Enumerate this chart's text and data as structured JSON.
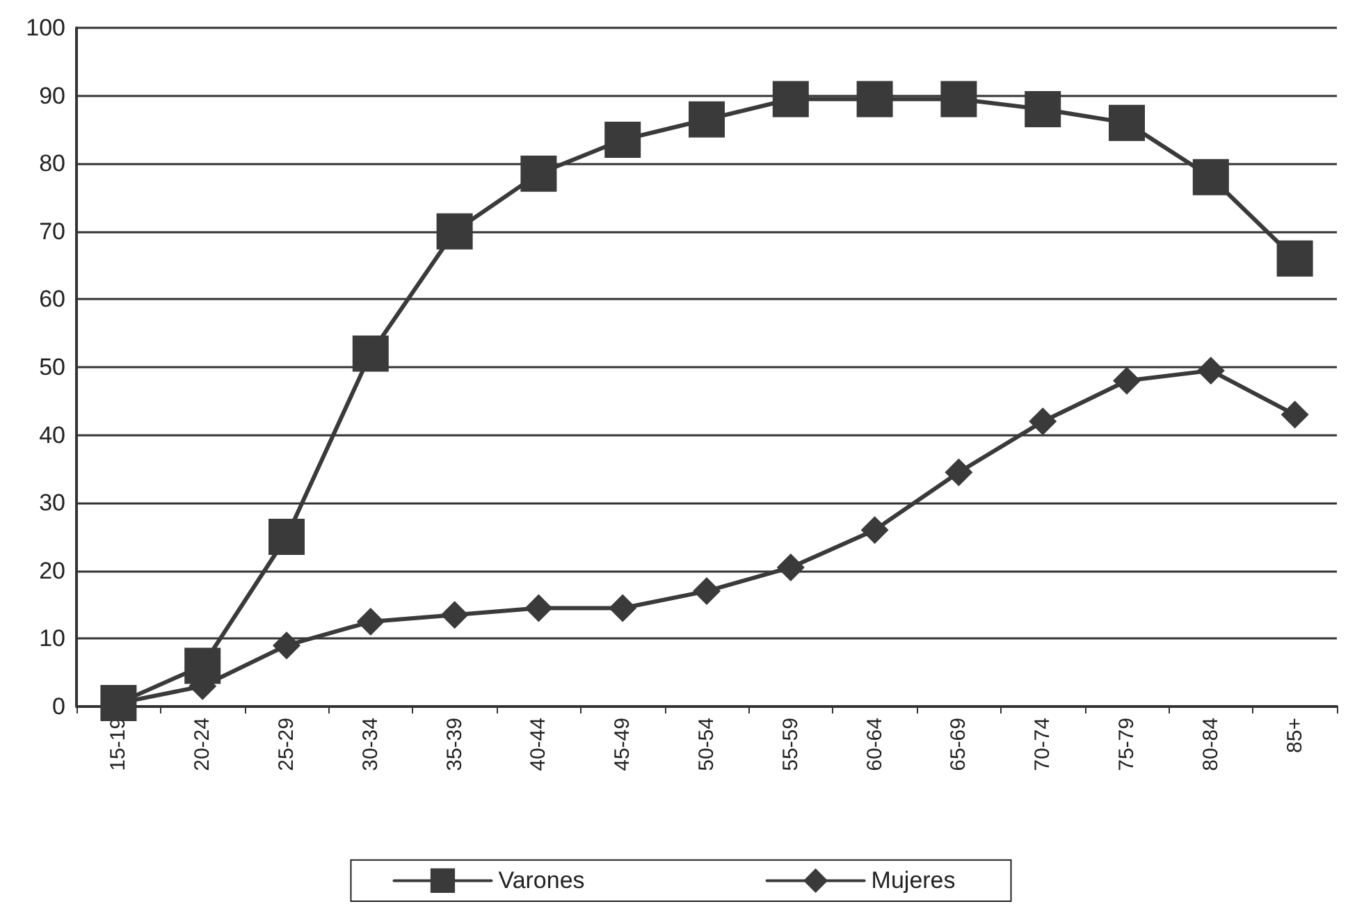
{
  "chart_data": {
    "type": "line",
    "categories": [
      "15-19",
      "20-24",
      "25-29",
      "30-34",
      "35-39",
      "40-44",
      "45-49",
      "50-54",
      "55-59",
      "60-64",
      "65-69",
      "70-74",
      "75-79",
      "80-84",
      "85+"
    ],
    "series": [
      {
        "name": "Varones",
        "color": "#3a3a3a",
        "marker": "square",
        "values": [
          0.5,
          6,
          25,
          52,
          70,
          78.5,
          83.5,
          86.5,
          89.5,
          89.5,
          89.5,
          88,
          86,
          78,
          66
        ]
      },
      {
        "name": "Mujeres",
        "color": "#3a3a3a",
        "marker": "diamond",
        "values": [
          0.5,
          3,
          9,
          12.5,
          13.5,
          14.5,
          14.5,
          17,
          20.5,
          26,
          34.5,
          42,
          48,
          49.5,
          43
        ]
      }
    ],
    "ylim": [
      0,
      100
    ],
    "yticks": [
      0,
      10,
      20,
      30,
      40,
      50,
      60,
      70,
      80,
      90,
      100
    ],
    "grid": "y",
    "legend": "bottom",
    "line_style": "solid"
  }
}
